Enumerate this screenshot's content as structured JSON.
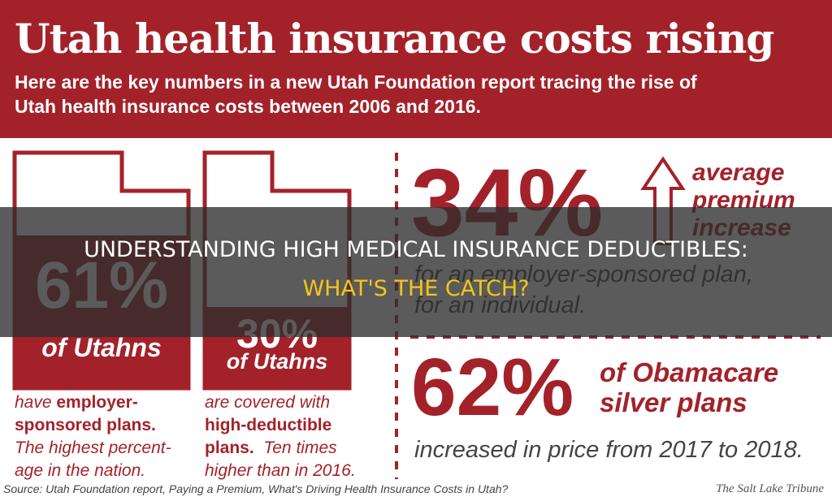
{
  "header": {
    "title": "Utah health insurance costs rising",
    "subtitle_lines": [
      "Here are the key numbers in a new Utah Foundation report tracing the rise of",
      "Utah health insurance costs between 2006 and 2016."
    ]
  },
  "cards": [
    {
      "value": "61%",
      "label": "of Utahns",
      "lines": [
        [
          {
            "text": "have ",
            "bold": false
          },
          {
            "text": "employer-",
            "bold": true
          }
        ],
        [
          {
            "text": "sponsored plans.",
            "bold": true
          }
        ],
        [
          {
            "text": "The highest percent-",
            "bold": false
          }
        ],
        [
          {
            "text": "age in the nation.",
            "bold": false
          }
        ]
      ]
    },
    {
      "value": "30%",
      "label": "of Utahns",
      "lines": [
        [
          {
            "text": "are covered with",
            "bold": false
          }
        ],
        [
          {
            "text": "high-deductible",
            "bold": true
          }
        ],
        [
          {
            "text": "plans.",
            "bold": true
          },
          {
            "text": "  Ten times",
            "bold": false
          }
        ],
        [
          {
            "text": "higher than in 2016.",
            "bold": false
          }
        ]
      ]
    }
  ],
  "stats": [
    {
      "value": "34%",
      "side_lines": [
        "average",
        "premium",
        "increase"
      ],
      "caption_lines": [
        "for an employer-sponsored plan,",
        "for an individual."
      ]
    },
    {
      "value": "62%",
      "side_lines": [
        "of Obamacare",
        "silver plans"
      ],
      "caption_lines": [
        "increased in price from 2017 to 2018."
      ]
    }
  ],
  "footer": {
    "source": "Source: Utah Foundation report, Paying a Premium, What's Driving Health Insurance Costs in Utah?",
    "credit": "The Salt Lake Tribune"
  },
  "overlay": {
    "line1": "UNDERSTANDING HIGH MEDICAL INSURANCE DEDUCTIBLES:",
    "line2": "WHAT'S THE CATCH?"
  }
}
